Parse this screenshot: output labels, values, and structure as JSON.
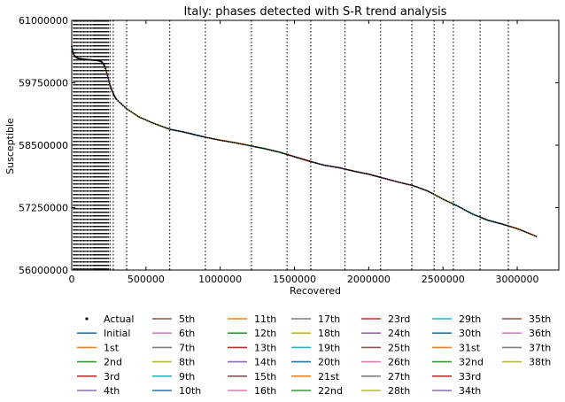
{
  "chart_data": {
    "type": "line",
    "title": "Italy: phases detected with S-R trend analysis",
    "xlabel": "Recovered",
    "ylabel": "Susceptible",
    "xlim": [
      0,
      3280000
    ],
    "ylim": [
      56000000,
      61000000
    ],
    "xticks": [
      0,
      500000,
      1000000,
      1500000,
      2000000,
      2500000,
      3000000
    ],
    "xtick_labels": [
      "0",
      "500000",
      "1000000",
      "1500000",
      "2000000",
      "2500000",
      "3000000"
    ],
    "yticks": [
      56000000,
      57250000,
      58500000,
      59750000,
      61000000
    ],
    "ytick_labels": [
      "56000000",
      "57250000",
      "58500000",
      "59750000",
      "61000000"
    ],
    "grid": false,
    "legend_position": "below plot, 7 columns",
    "actual": {
      "name": "Actual",
      "x": [
        0,
        3000,
        8000,
        15000,
        25000,
        40000,
        60000,
        80000,
        100000,
        120000,
        140000,
        160000,
        180000,
        195000,
        205000,
        215000,
        225000,
        235000,
        245000,
        255000,
        270000,
        285000,
        300000,
        330000,
        370000,
        450000,
        550000,
        660000,
        760000,
        900000,
        1000000,
        1100000,
        1200000,
        1300000,
        1400000,
        1500000,
        1600000,
        1700000,
        1800000,
        1900000,
        2000000,
        2100000,
        2200000,
        2300000,
        2400000,
        2500000,
        2600000,
        2700000,
        2800000,
        2900000,
        3000000,
        3100000,
        3130000
      ],
      "y": [
        60480000,
        60420000,
        60360000,
        60310000,
        60270000,
        60240000,
        60230000,
        60220000,
        60215000,
        60210000,
        60205000,
        60200000,
        60195000,
        60180000,
        60160000,
        60120000,
        60060000,
        59960000,
        59850000,
        59730000,
        59600000,
        59500000,
        59420000,
        59340000,
        59230000,
        59070000,
        58940000,
        58820000,
        58760000,
        58660000,
        58600000,
        58550000,
        58490000,
        58430000,
        58360000,
        58270000,
        58180000,
        58100000,
        58050000,
        57980000,
        57920000,
        57840000,
        57760000,
        57690000,
        57580000,
        57420000,
        57280000,
        57120000,
        57000000,
        56920000,
        56830000,
        56710000,
        56670000
      ]
    },
    "phase_starts": [
      12000,
      18000,
      25000,
      32000,
      40000,
      48000,
      56000,
      64000,
      72000,
      80000,
      88000,
      96000,
      104000,
      112000,
      120000,
      128000,
      136000,
      144000,
      150000,
      156000,
      162000,
      168000,
      174000,
      180000,
      186000,
      192000,
      198000,
      204000,
      210000,
      216000,
      222000,
      228000,
      234000,
      240000,
      248000,
      258000,
      280000,
      370000,
      660000,
      900000,
      1210000,
      1450000,
      1610000,
      1840000,
      2080000,
      2290000,
      2440000,
      2570000,
      2750000,
      2940000
    ],
    "series": [
      {
        "name": "Initial",
        "color": "#1f77b4"
      },
      {
        "name": "1st",
        "color": "#ff7f0e"
      },
      {
        "name": "2nd",
        "color": "#2ca02c"
      },
      {
        "name": "3rd",
        "color": "#d62728"
      },
      {
        "name": "4th",
        "color": "#9467bd"
      },
      {
        "name": "5th",
        "color": "#8c564b"
      },
      {
        "name": "6th",
        "color": "#e377c2"
      },
      {
        "name": "7th",
        "color": "#7f7f7f"
      },
      {
        "name": "8th",
        "color": "#bcbd22"
      },
      {
        "name": "9th",
        "color": "#17becf"
      },
      {
        "name": "10th",
        "color": "#1f77b4"
      },
      {
        "name": "11th",
        "color": "#ff7f0e"
      },
      {
        "name": "12th",
        "color": "#2ca02c"
      },
      {
        "name": "13th",
        "color": "#d62728"
      },
      {
        "name": "14th",
        "color": "#9467bd"
      },
      {
        "name": "15th",
        "color": "#8c564b"
      },
      {
        "name": "16th",
        "color": "#e377c2"
      },
      {
        "name": "17th",
        "color": "#7f7f7f"
      },
      {
        "name": "18th",
        "color": "#bcbd22"
      },
      {
        "name": "19th",
        "color": "#17becf"
      },
      {
        "name": "20th",
        "color": "#1f77b4"
      },
      {
        "name": "21st",
        "color": "#ff7f0e"
      },
      {
        "name": "22nd",
        "color": "#2ca02c"
      },
      {
        "name": "23rd",
        "color": "#d62728"
      },
      {
        "name": "24th",
        "color": "#9467bd"
      },
      {
        "name": "25th",
        "color": "#8c564b"
      },
      {
        "name": "26th",
        "color": "#e377c2"
      },
      {
        "name": "27th",
        "color": "#7f7f7f"
      },
      {
        "name": "28th",
        "color": "#bcbd22"
      },
      {
        "name": "29th",
        "color": "#17becf"
      },
      {
        "name": "30th",
        "color": "#1f77b4"
      },
      {
        "name": "31st",
        "color": "#ff7f0e"
      },
      {
        "name": "32nd",
        "color": "#2ca02c"
      },
      {
        "name": "33rd",
        "color": "#d62728"
      },
      {
        "name": "34th",
        "color": "#9467bd"
      },
      {
        "name": "35th",
        "color": "#8c564b"
      },
      {
        "name": "36th",
        "color": "#e377c2"
      },
      {
        "name": "37th",
        "color": "#7f7f7f"
      },
      {
        "name": "38th",
        "color": "#bcbd22"
      }
    ]
  }
}
